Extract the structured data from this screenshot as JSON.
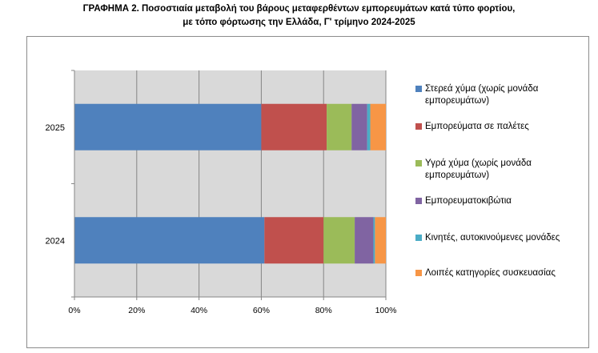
{
  "title_line1": "ΓΡΑΦΗΜΑ 2. Ποσοστιαία μεταβολή του βάρους μεταφερθέντων εμπορευμάτων κατά τύπο φορτίου,",
  "title_line2": "με τόπο φόρτωσης την Ελλάδα, Γ' τρίμηνο 2024-2025",
  "chart_data": {
    "type": "bar",
    "orientation": "horizontal",
    "stacked": "percent",
    "categories": [
      "2025",
      "2024"
    ],
    "series": [
      {
        "name": "Στερεά χύμα (χωρίς μονάδα εμπορευμάτων)",
        "color": "#4f81bd",
        "values": [
          60,
          61
        ]
      },
      {
        "name": "Εμπορεύματα σε παλέτες",
        "color": "#c0504d",
        "values": [
          21,
          19
        ]
      },
      {
        "name": "Υγρά χύμα (χωρίς μονάδα εμπορευμάτων)",
        "color": "#9bbb59",
        "values": [
          8,
          10
        ]
      },
      {
        "name": "Εμπορευματοκιβώτια",
        "color": "#8064a2",
        "values": [
          5,
          6
        ]
      },
      {
        "name": "Κινητές, αυτοκινούμενες μονάδες",
        "color": "#4bacc6",
        "values": [
          1,
          0.5
        ]
      },
      {
        "name": "Λοιπές κατηγορίες συσκευασίας",
        "color": "#f79646",
        "values": [
          5,
          3.5
        ]
      }
    ],
    "xlim": [
      0,
      100
    ],
    "xticks": [
      "0%",
      "20%",
      "40%",
      "60%",
      "80%",
      "100%"
    ],
    "grid": true,
    "legend": "right"
  }
}
